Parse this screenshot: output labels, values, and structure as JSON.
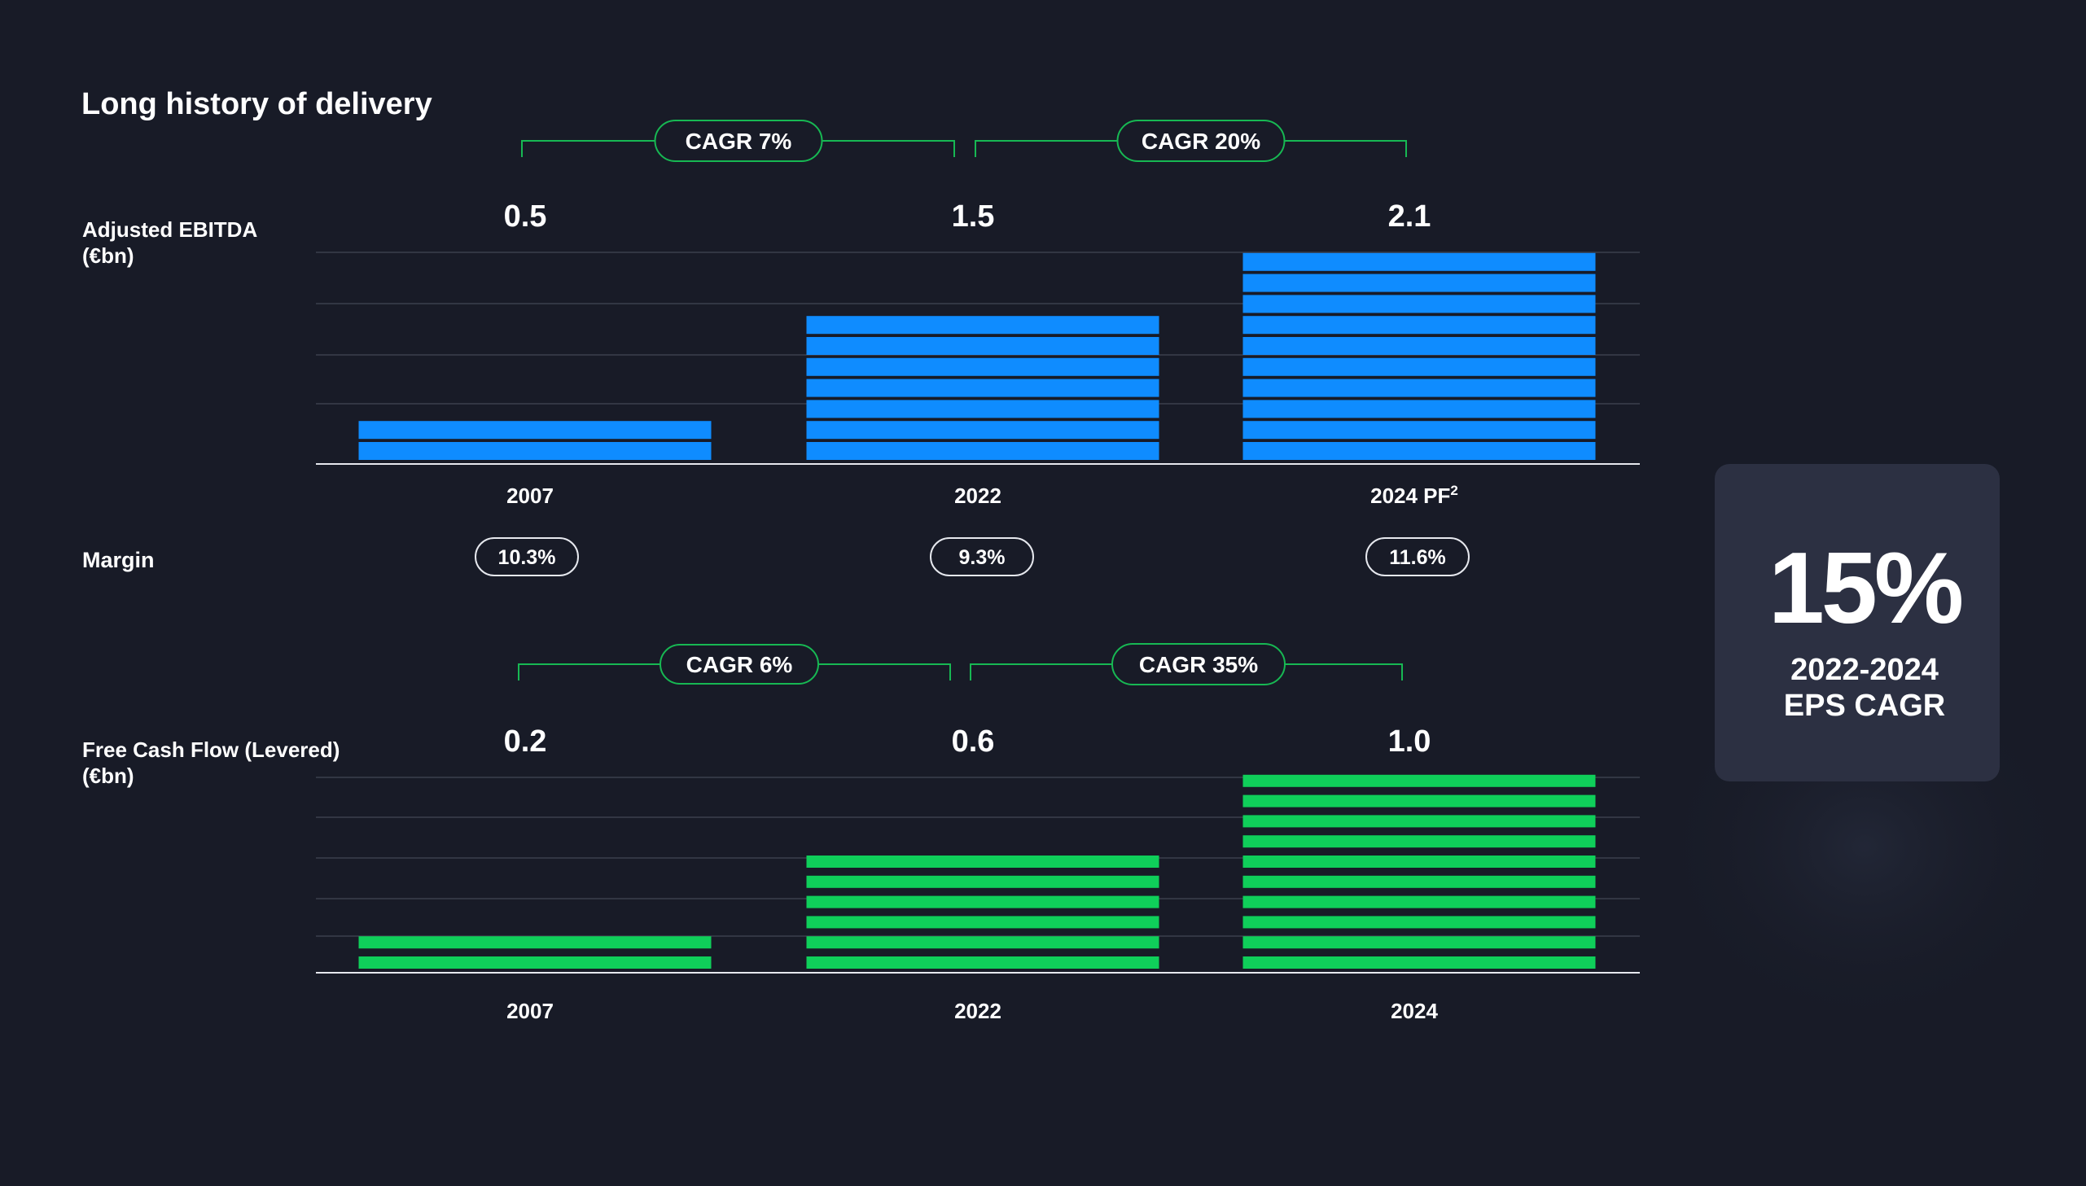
{
  "title": "Long history of delivery",
  "highlight": {
    "value": "15%",
    "line1": "2022-2024",
    "line2": "EPS CAGR"
  },
  "colors": {
    "background": "#181b27",
    "ebitda_bar": "#0f8cff",
    "fcf_bar": "#0fcf5a",
    "bracket": "#17b853",
    "gridline": "#3b3f4d",
    "card": "#2c3042"
  },
  "margin_label": "Margin",
  "chart_data": [
    {
      "type": "bar",
      "title": "",
      "ylabel": "Adjusted EBITDA (€bn)",
      "ylabel_lines": [
        "Adjusted EBITDA",
        "(€bn)"
      ],
      "categories": [
        "2007",
        "2022",
        "2024 PF"
      ],
      "category_superscripts": [
        "",
        "",
        "2"
      ],
      "values": [
        0.5,
        1.5,
        2.1
      ],
      "value_labels": [
        "0.5",
        "1.5",
        "2.1"
      ],
      "ylim": [
        0,
        2.1
      ],
      "grid": true,
      "color": "#0f8cff",
      "cagr": [
        {
          "label": "CAGR 7%",
          "from": "2007",
          "to": "2022"
        },
        {
          "label": "CAGR 20%",
          "from": "2022",
          "to": "2024 PF"
        }
      ],
      "margins": [
        "10.3%",
        "9.3%",
        "11.6%"
      ]
    },
    {
      "type": "bar",
      "title": "",
      "ylabel": "Free Cash Flow (Levered) (€bn)",
      "ylabel_lines": [
        "Free Cash Flow (Levered)",
        "(€bn)"
      ],
      "categories": [
        "2007",
        "2022",
        "2024"
      ],
      "category_superscripts": [
        "",
        "",
        ""
      ],
      "values": [
        0.2,
        0.6,
        1.0
      ],
      "value_labels": [
        "0.2",
        "0.6",
        "1.0"
      ],
      "ylim": [
        0,
        1.0
      ],
      "grid": true,
      "color": "#0fcf5a",
      "cagr": [
        {
          "label": "CAGR 6%",
          "from": "2007",
          "to": "2022"
        },
        {
          "label": "CAGR 35%",
          "from": "2022",
          "to": "2024"
        }
      ]
    }
  ]
}
